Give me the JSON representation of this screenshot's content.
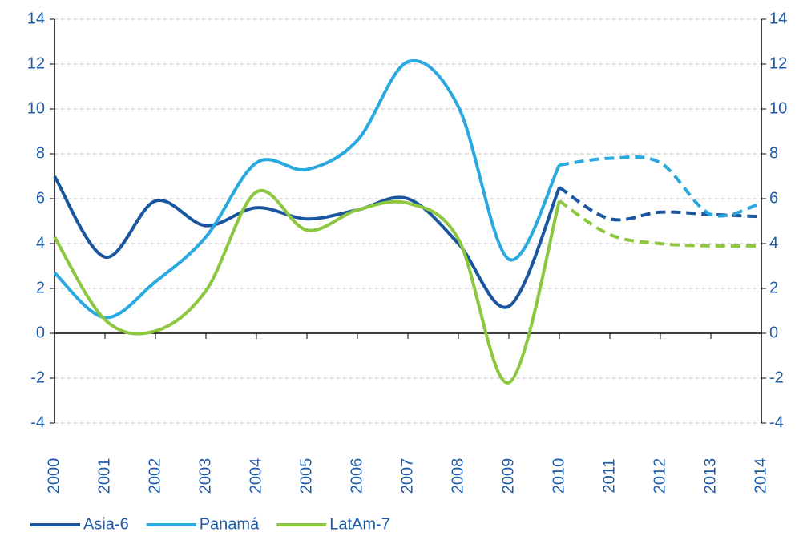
{
  "chart_data": {
    "type": "line",
    "x": [
      2000,
      2001,
      2002,
      2003,
      2004,
      2005,
      2006,
      2007,
      2008,
      2009,
      2010,
      2011,
      2012,
      2013,
      2014
    ],
    "xlim": [
      2000,
      2014
    ],
    "series": [
      {
        "name": "Asia-6",
        "color": "#1a56a0",
        "values": [
          7.0,
          3.4,
          5.9,
          4.8,
          5.6,
          5.1,
          5.5,
          6.0,
          4.0,
          1.2,
          6.5,
          5.1,
          5.4,
          5.3,
          5.2
        ]
      },
      {
        "name": "Panamá",
        "color": "#2aa8e0",
        "values": [
          2.7,
          0.7,
          2.3,
          4.3,
          7.6,
          7.3,
          8.6,
          12.1,
          10.1,
          3.3,
          7.5,
          7.8,
          7.6,
          5.3,
          5.8
        ]
      },
      {
        "name": "LatAm-7",
        "color": "#8dc63f",
        "values": [
          4.3,
          0.6,
          0.1,
          1.9,
          6.3,
          4.6,
          5.5,
          5.8,
          4.2,
          -2.2,
          5.9,
          4.4,
          4.0,
          3.9,
          3.9
        ]
      }
    ],
    "projection_start": 2010,
    "ylim": [
      -4,
      14
    ],
    "yticks": [
      -4,
      -2,
      0,
      2,
      4,
      6,
      8,
      10,
      12,
      14
    ],
    "y2lim": [
      -4,
      14
    ],
    "y2ticks": [
      -4,
      -2,
      0,
      2,
      4,
      6,
      8,
      10,
      12,
      14
    ],
    "grid": true,
    "legend": "bottom-left"
  }
}
